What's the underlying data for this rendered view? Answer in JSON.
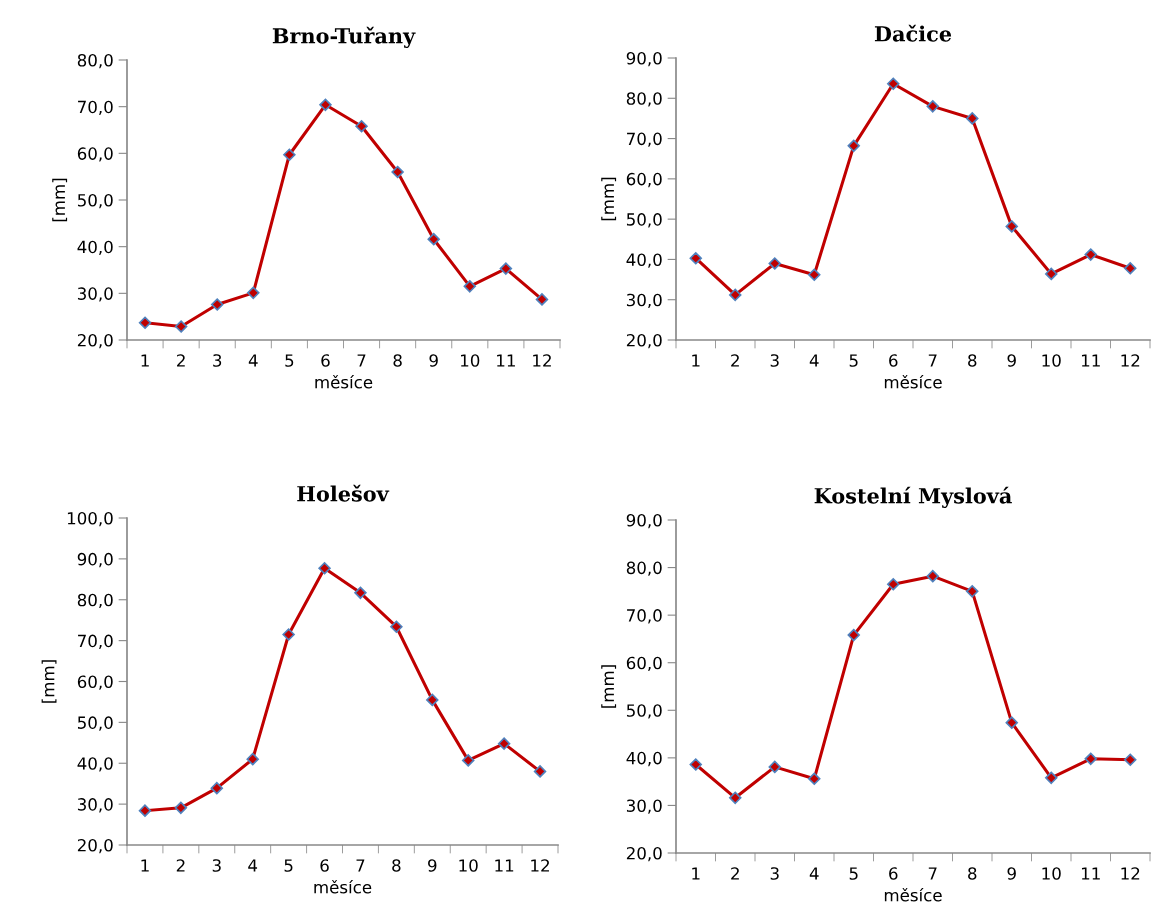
{
  "chart_data": [
    {
      "type": "line",
      "title": "Brno-Tuřany",
      "xlabel": "měsíce",
      "ylabel": "[mm]",
      "categories": [
        "1",
        "2",
        "3",
        "4",
        "5",
        "6",
        "7",
        "8",
        "9",
        "10",
        "11",
        "12"
      ],
      "series": [
        {
          "color": "#c00000",
          "values": [
            23.7,
            22.9,
            27.6,
            30.1,
            59.7,
            70.4,
            65.8,
            56.0,
            41.6,
            31.5,
            35.3,
            28.7
          ]
        }
      ],
      "ylim": [
        20,
        80
      ],
      "yticks": [
        {
          "value": 20,
          "label": "20,0"
        },
        {
          "value": 30,
          "label": "30,0"
        },
        {
          "value": 40,
          "label": "40,0"
        },
        {
          "value": 50,
          "label": "50,0"
        },
        {
          "value": 60,
          "label": "60,0"
        },
        {
          "value": 70,
          "label": "70,0"
        },
        {
          "value": 80,
          "label": "80,0"
        }
      ],
      "marker": "diamond",
      "line_style": "solid"
    },
    {
      "type": "line",
      "title": "Dačice",
      "xlabel": "měsíce",
      "ylabel": "[mm]",
      "categories": [
        "1",
        "2",
        "3",
        "4",
        "5",
        "6",
        "7",
        "8",
        "9",
        "10",
        "11",
        "12"
      ],
      "series": [
        {
          "color": "#c00000",
          "values": [
            40.3,
            31.2,
            39.0,
            36.2,
            68.2,
            83.6,
            78.0,
            75.0,
            48.2,
            36.4,
            41.2,
            37.8
          ]
        }
      ],
      "ylim": [
        20,
        90
      ],
      "yticks": [
        {
          "value": 20,
          "label": "20,0"
        },
        {
          "value": 30,
          "label": "30,0"
        },
        {
          "value": 40,
          "label": "40,0"
        },
        {
          "value": 50,
          "label": "50,0"
        },
        {
          "value": 60,
          "label": "60,0"
        },
        {
          "value": 70,
          "label": "70,0"
        },
        {
          "value": 80,
          "label": "80,0"
        },
        {
          "value": 90,
          "label": "90,0"
        }
      ],
      "marker": "diamond",
      "line_style": "solid"
    },
    {
      "type": "line",
      "title": "Holešov",
      "xlabel": "měsíce",
      "ylabel": "[mm]",
      "categories": [
        "1",
        "2",
        "3",
        "4",
        "5",
        "6",
        "7",
        "8",
        "9",
        "10",
        "11",
        "12"
      ],
      "series": [
        {
          "color": "#c00000",
          "values": [
            28.4,
            29.1,
            33.9,
            41.0,
            71.5,
            87.7,
            81.7,
            73.4,
            55.5,
            40.7,
            44.8,
            38.0
          ]
        }
      ],
      "ylim": [
        20,
        100
      ],
      "yticks": [
        {
          "value": 20,
          "label": "20,0"
        },
        {
          "value": 30,
          "label": "30,0"
        },
        {
          "value": 40,
          "label": "40,0"
        },
        {
          "value": 50,
          "label": "50,0"
        },
        {
          "value": 60,
          "label": "60,0"
        },
        {
          "value": 70,
          "label": "70,0"
        },
        {
          "value": 80,
          "label": "80,0"
        },
        {
          "value": 90,
          "label": "90,0"
        },
        {
          "value": 100,
          "label": "100,0"
        }
      ],
      "marker": "diamond",
      "line_style": "solid"
    },
    {
      "type": "line",
      "title": "Kostelní Myslová",
      "xlabel": "měsíce",
      "ylabel": "[mm]",
      "categories": [
        "1",
        "2",
        "3",
        "4",
        "5",
        "6",
        "7",
        "8",
        "9",
        "10",
        "11",
        "12"
      ],
      "series": [
        {
          "color": "#c00000",
          "values": [
            38.6,
            31.6,
            38.1,
            35.6,
            65.8,
            76.5,
            78.2,
            75.0,
            47.4,
            35.8,
            39.8,
            39.6
          ]
        }
      ],
      "ylim": [
        20,
        90
      ],
      "yticks": [
        {
          "value": 20,
          "label": "20,0"
        },
        {
          "value": 30,
          "label": "30,0"
        },
        {
          "value": 40,
          "label": "40,0"
        },
        {
          "value": 50,
          "label": "50,0"
        },
        {
          "value": 60,
          "label": "60,0"
        },
        {
          "value": 70,
          "label": "70,0"
        },
        {
          "value": 80,
          "label": "80,0"
        },
        {
          "value": 90,
          "label": "90,0"
        }
      ],
      "marker": "diamond",
      "line_style": "solid"
    }
  ]
}
